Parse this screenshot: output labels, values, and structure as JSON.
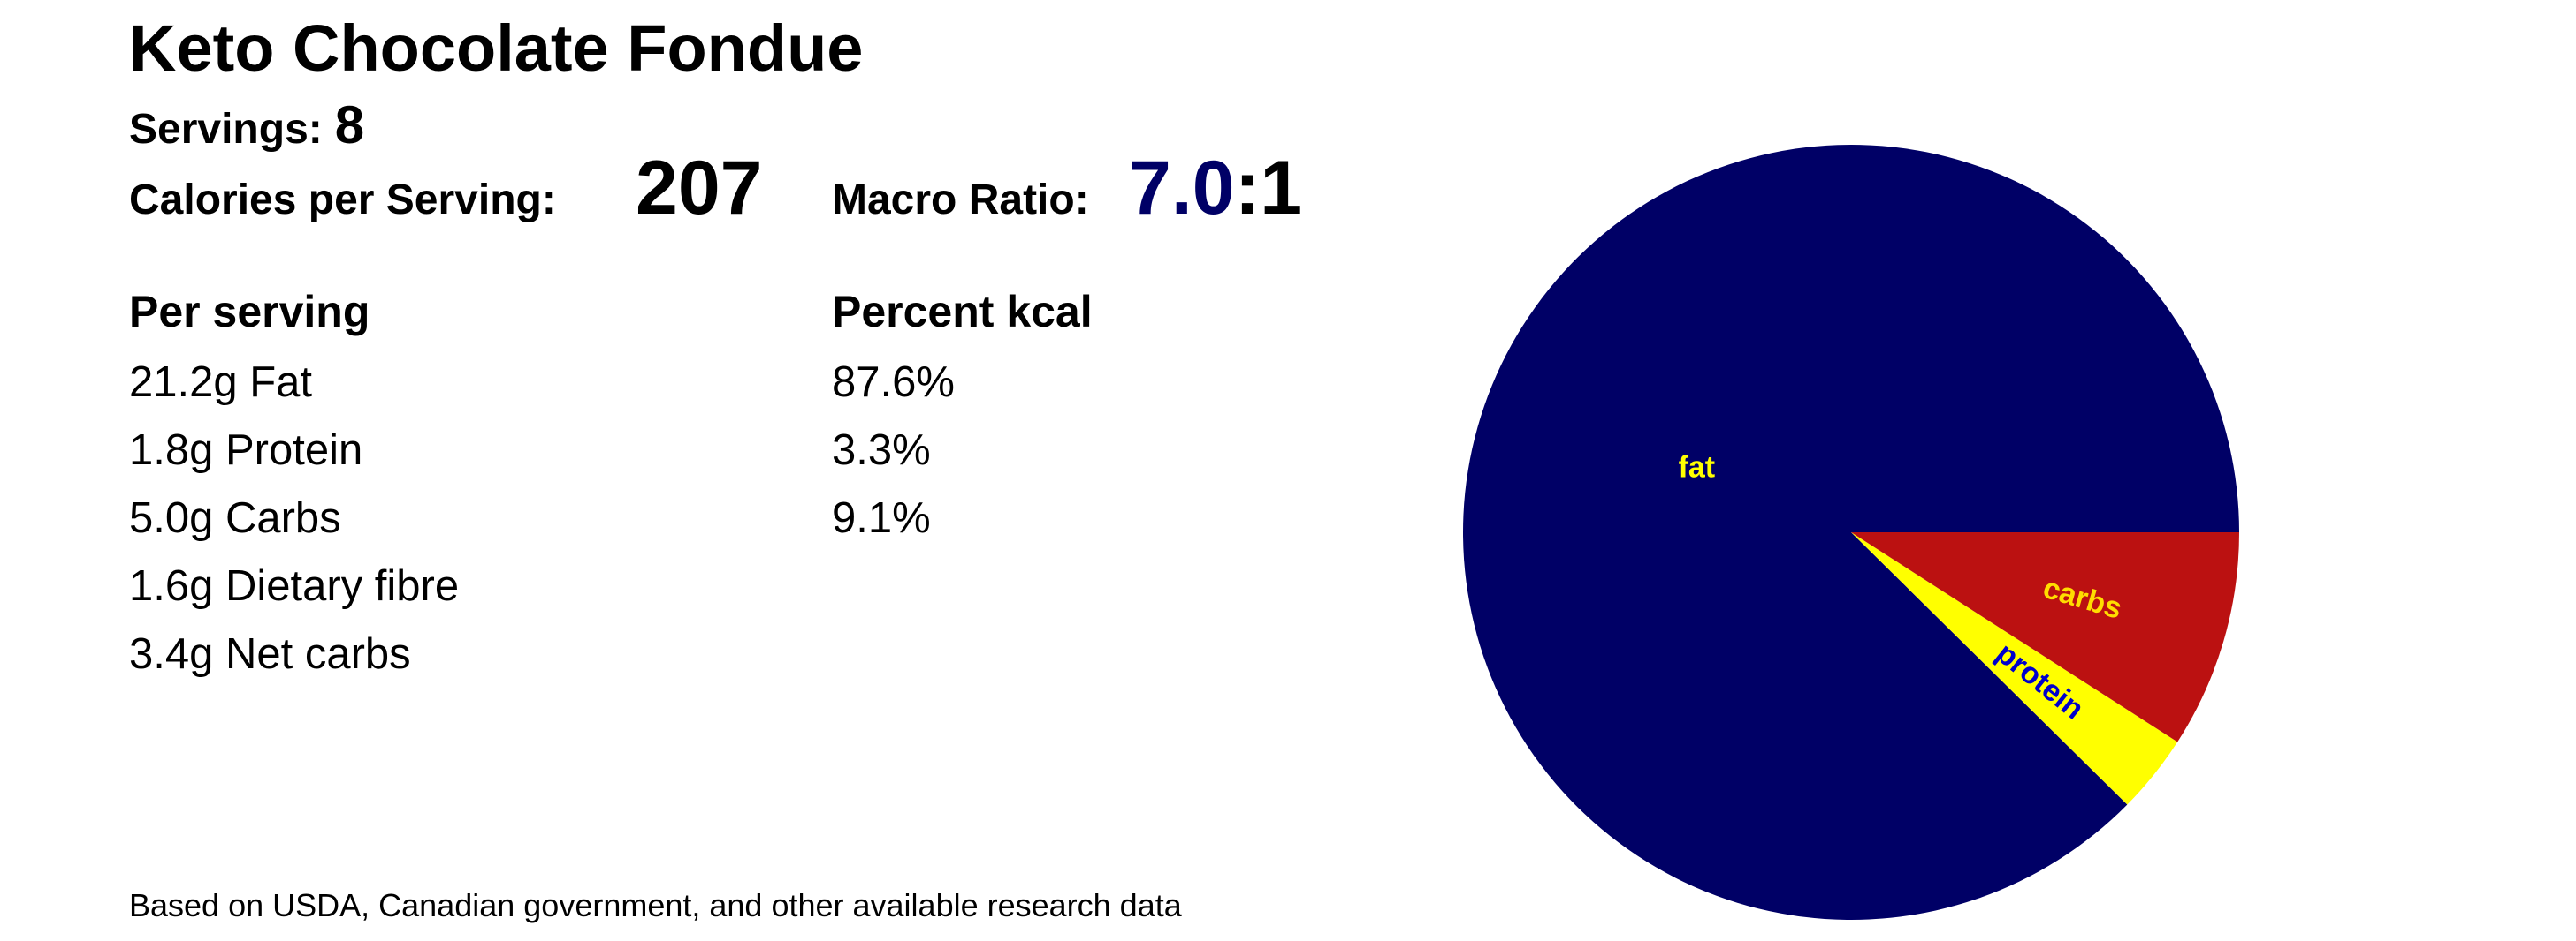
{
  "header": {
    "title": "Keto Chocolate Fondue",
    "servings_label": "Servings:",
    "servings": "8",
    "calories_label": "Calories per Serving:",
    "calories": "207",
    "ratio_label": "Macro Ratio:",
    "ratio": "7.0",
    "ratio_suffix": ":1"
  },
  "table": {
    "headers": [
      "Per serving",
      "Percent kcal"
    ],
    "per_serving": [
      "21.2g Fat",
      "1.8g Protein",
      "5.0g Carbs",
      "1.6g Dietary fibre",
      "3.4g Net carbs"
    ],
    "percent_kcal": [
      "87.6%",
      "3.3%",
      "9.1%"
    ]
  },
  "footer": "Based on USDA, Canadian government, and other available research data",
  "chart_data": {
    "type": "pie",
    "categories": [
      "fat",
      "protein",
      "carbs"
    ],
    "values": [
      87.6,
      3.3,
      9.1
    ],
    "colors": [
      "#000066",
      "#ffff00",
      "#bb1111"
    ],
    "label_colors": [
      "#ffff00",
      "#0000cc",
      "#ffdd00"
    ],
    "start_angle": 0,
    "direction": "counterclockwise"
  }
}
